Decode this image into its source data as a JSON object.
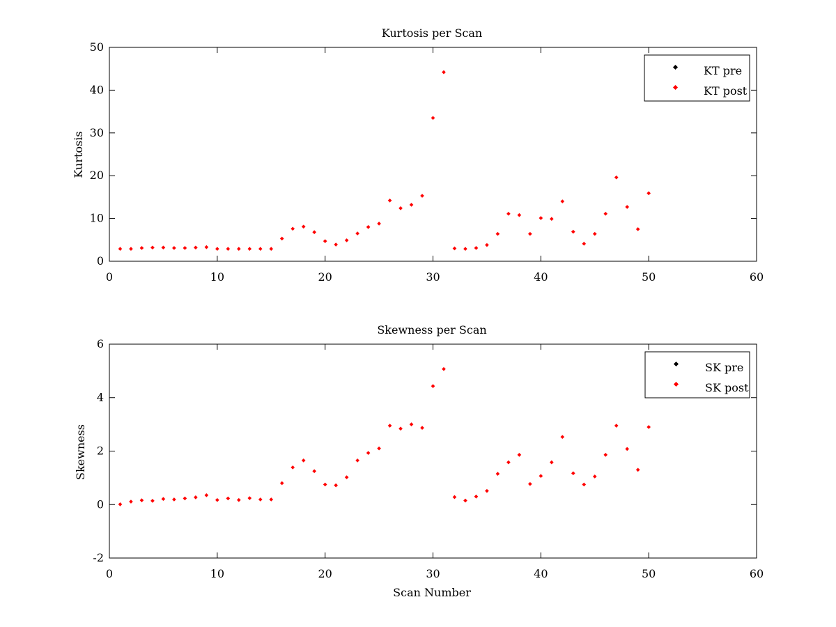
{
  "chart_data": [
    {
      "type": "scatter",
      "title": "Kurtosis per Scan",
      "xlabel": "",
      "ylabel": "Kurtosis",
      "xlim": [
        0,
        60
      ],
      "ylim": [
        0,
        50
      ],
      "xticks": [
        0,
        10,
        20,
        30,
        40,
        50,
        60
      ],
      "yticks": [
        0,
        10,
        20,
        30,
        40,
        50
      ],
      "legend_position": "top-right",
      "grid": false,
      "series": [
        {
          "name": "KT pre",
          "color": "#000000",
          "x": [],
          "y": []
        },
        {
          "name": "KT post",
          "color": "#ff0000",
          "x": [
            1,
            2,
            3,
            4,
            5,
            6,
            7,
            8,
            9,
            10,
            11,
            12,
            13,
            14,
            15,
            16,
            17,
            18,
            19,
            20,
            21,
            22,
            23,
            24,
            25,
            26,
            27,
            28,
            29,
            30,
            31,
            32,
            33,
            34,
            35,
            36,
            37,
            38,
            39,
            40,
            41,
            42,
            43,
            44,
            45,
            46,
            47,
            48,
            49,
            50
          ],
          "y": [
            2.9,
            2.9,
            3.1,
            3.2,
            3.2,
            3.1,
            3.1,
            3.2,
            3.3,
            2.9,
            2.9,
            2.9,
            2.9,
            2.9,
            2.9,
            5.3,
            7.6,
            8.1,
            6.8,
            4.7,
            3.9,
            4.9,
            6.5,
            8.0,
            8.8,
            14.2,
            12.4,
            13.2,
            15.3,
            33.5,
            44.2,
            3.0,
            2.9,
            3.1,
            3.8,
            6.4,
            11.1,
            10.8,
            6.4,
            10.1,
            9.9,
            14.0,
            6.9,
            4.1,
            6.4,
            11.1,
            19.6,
            12.7,
            7.5,
            15.9
          ]
        }
      ]
    },
    {
      "type": "scatter",
      "title": "Skewness per Scan",
      "xlabel": "Scan Number",
      "ylabel": "Skewness",
      "xlim": [
        0,
        60
      ],
      "ylim": [
        -2,
        6
      ],
      "xticks": [
        0,
        10,
        20,
        30,
        40,
        50,
        60
      ],
      "yticks": [
        -2,
        0,
        2,
        4,
        6
      ],
      "legend_position": "top-right",
      "grid": false,
      "series": [
        {
          "name": "SK pre",
          "color": "#000000",
          "x": [],
          "y": []
        },
        {
          "name": "SK post",
          "color": "#ff0000",
          "x": [
            1,
            2,
            3,
            4,
            5,
            6,
            7,
            8,
            9,
            10,
            11,
            12,
            13,
            14,
            15,
            16,
            17,
            18,
            19,
            20,
            21,
            22,
            23,
            24,
            25,
            26,
            27,
            28,
            29,
            30,
            31,
            32,
            33,
            34,
            35,
            36,
            37,
            38,
            39,
            40,
            41,
            42,
            43,
            44,
            45,
            46,
            47,
            48,
            49,
            50
          ],
          "y": [
            0.01,
            0.11,
            0.16,
            0.14,
            0.21,
            0.19,
            0.23,
            0.27,
            0.35,
            0.17,
            0.23,
            0.17,
            0.24,
            0.19,
            0.19,
            0.8,
            1.39,
            1.65,
            1.25,
            0.75,
            0.72,
            1.02,
            1.65,
            1.93,
            2.1,
            2.95,
            2.84,
            3.0,
            2.87,
            4.43,
            5.07,
            0.28,
            0.15,
            0.3,
            0.51,
            1.15,
            1.58,
            1.86,
            0.77,
            1.07,
            1.58,
            2.53,
            1.17,
            0.75,
            1.05,
            1.86,
            2.95,
            2.08,
            1.3,
            2.9
          ]
        }
      ]
    }
  ]
}
